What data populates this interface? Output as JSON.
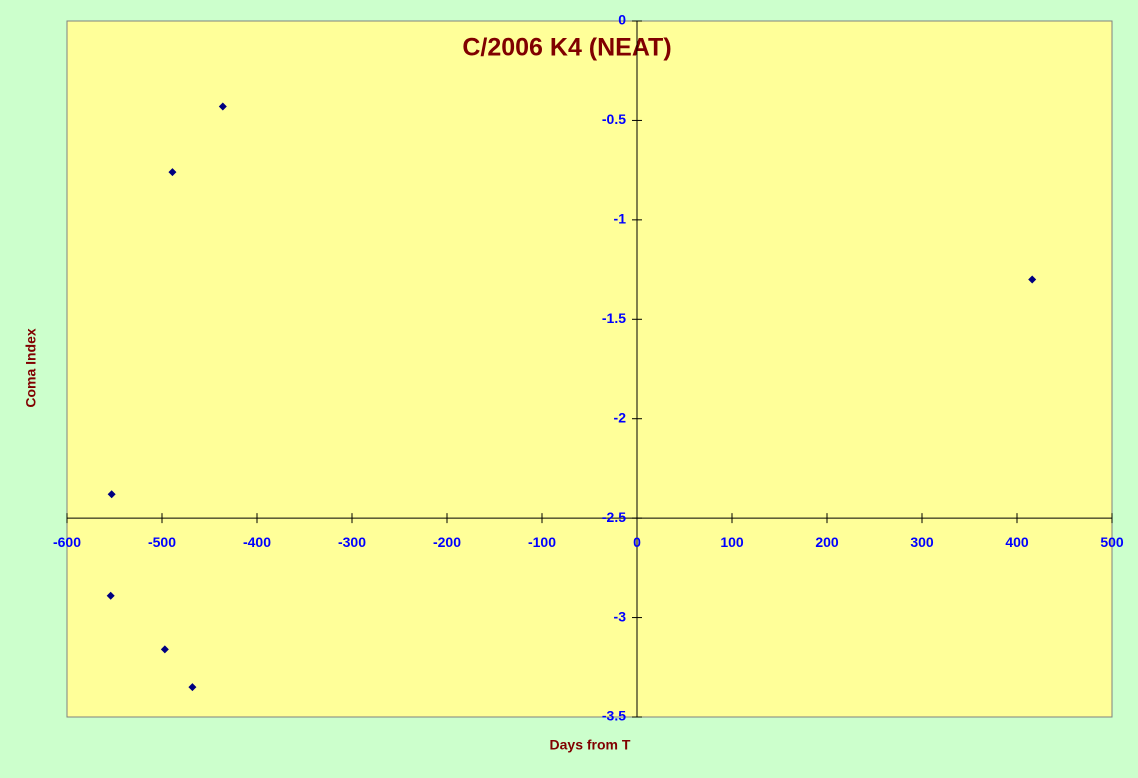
{
  "chart_data": {
    "type": "scatter",
    "title": "C/2006 K4 (NEAT)",
    "x_label": "Days from T",
    "y_label": "Coma Index",
    "series": [
      {
        "color": "#000080",
        "x": [
          -436,
          -489,
          416,
          -553,
          -554,
          -497,
          -468
        ],
        "values": [
          -0.43,
          -0.76,
          -1.3,
          -2.38,
          -2.89,
          -3.16,
          -3.35
        ]
      }
    ],
    "xlim": [
      -600,
      500
    ],
    "xticks": [
      -600,
      -500,
      -400,
      -300,
      -200,
      -100,
      0,
      100,
      200,
      300,
      400,
      500
    ],
    "ylim": [
      -3.5,
      0
    ],
    "yticks": [
      0,
      -0.5,
      -1,
      -1.5,
      -2,
      -2.5,
      -3,
      -3.5
    ],
    "axis_cross": {
      "x": 0,
      "y": -2.5
    },
    "plot_color": "#ffff99",
    "background_color": "#ccffcc",
    "grid": false
  }
}
